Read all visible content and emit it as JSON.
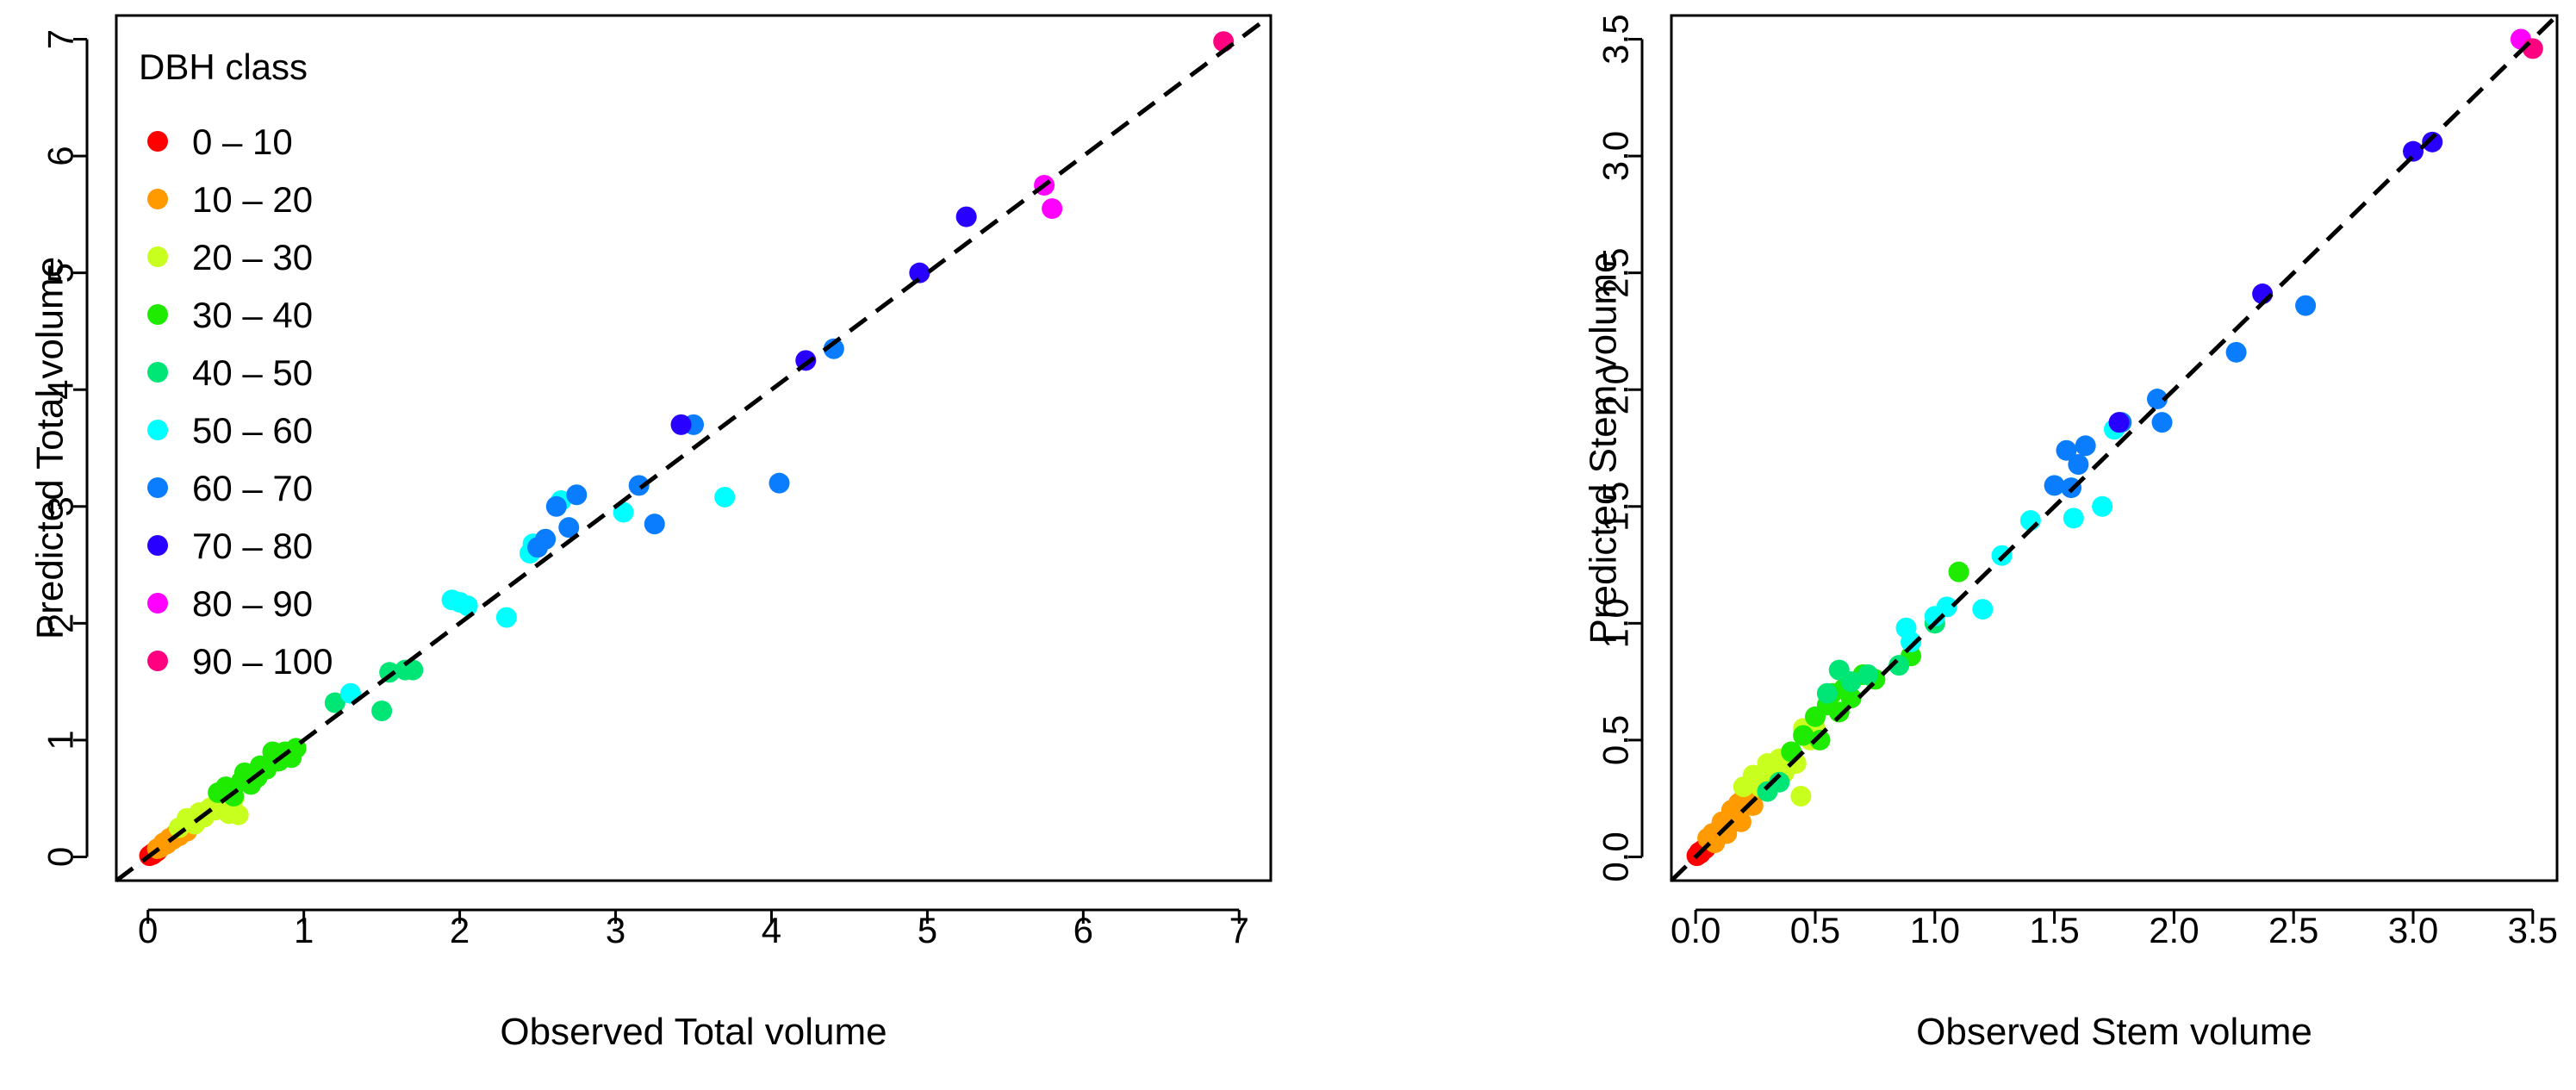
{
  "chart_data": [
    {
      "type": "scatter",
      "id": "total",
      "xlabel": "Observed Total volume",
      "ylabel": "Predicted Total volume",
      "xlim": [
        0,
        7
      ],
      "ylim": [
        0,
        7
      ],
      "xticks": [
        0,
        1,
        2,
        3,
        4,
        5,
        6,
        7
      ],
      "yticks": [
        0,
        1,
        2,
        3,
        4,
        5,
        6,
        7
      ],
      "xtick_labels": [
        "0",
        "1",
        "2",
        "3",
        "4",
        "5",
        "6",
        "7"
      ],
      "ytick_labels": [
        "0",
        "1",
        "2",
        "3",
        "4",
        "5",
        "6",
        "7"
      ],
      "reference_line": "y = x (dashed)",
      "legend": {
        "title": "DBH class",
        "placement": "top-left",
        "entries": [
          {
            "label": "0 – 10",
            "color": "#ff0000"
          },
          {
            "label": "10 – 20",
            "color": "#ff9a00"
          },
          {
            "label": "20 – 30",
            "color": "#c8ff1e"
          },
          {
            "label": "30 – 40",
            "color": "#1eeb00"
          },
          {
            "label": "40 – 50",
            "color": "#00e676"
          },
          {
            "label": "50 – 60",
            "color": "#00ffff"
          },
          {
            "label": "60 – 70",
            "color": "#0a7dff"
          },
          {
            "label": "70 – 80",
            "color": "#2800ff"
          },
          {
            "label": "80 – 90",
            "color": "#ff00ff"
          },
          {
            "label": "90 – 100",
            "color": "#ff0080"
          }
        ]
      },
      "series": [
        {
          "name": "0 – 10",
          "points": [
            [
              0.01,
              0.01
            ],
            [
              0.02,
              0.02
            ],
            [
              0.03,
              0.02
            ],
            [
              0.04,
              0.04
            ],
            [
              0.05,
              0.04
            ],
            [
              0.06,
              0.05
            ]
          ]
        },
        {
          "name": "10 – 20",
          "points": [
            [
              0.06,
              0.07
            ],
            [
              0.08,
              0.08
            ],
            [
              0.1,
              0.12
            ],
            [
              0.12,
              0.11
            ],
            [
              0.14,
              0.16
            ],
            [
              0.16,
              0.15
            ],
            [
              0.18,
              0.2
            ],
            [
              0.2,
              0.18
            ],
            [
              0.22,
              0.23
            ],
            [
              0.25,
              0.22
            ],
            [
              0.28,
              0.27
            ],
            [
              0.3,
              0.3
            ]
          ]
        },
        {
          "name": "20 – 30",
          "points": [
            [
              0.2,
              0.25
            ],
            [
              0.25,
              0.33
            ],
            [
              0.3,
              0.28
            ],
            [
              0.33,
              0.38
            ],
            [
              0.36,
              0.34
            ],
            [
              0.4,
              0.42
            ],
            [
              0.43,
              0.4
            ],
            [
              0.46,
              0.47
            ],
            [
              0.5,
              0.44
            ],
            [
              0.52,
              0.37
            ],
            [
              0.55,
              0.5
            ],
            [
              0.58,
              0.36
            ]
          ]
        },
        {
          "name": "30 – 40",
          "points": [
            [
              0.45,
              0.55
            ],
            [
              0.5,
              0.6
            ],
            [
              0.55,
              0.52
            ],
            [
              0.6,
              0.65
            ],
            [
              0.62,
              0.72
            ],
            [
              0.66,
              0.62
            ],
            [
              0.7,
              0.68
            ],
            [
              0.72,
              0.78
            ],
            [
              0.76,
              0.75
            ],
            [
              0.8,
              0.9
            ],
            [
              0.84,
              0.82
            ],
            [
              0.88,
              0.9
            ],
            [
              0.92,
              0.85
            ],
            [
              0.95,
              0.93
            ]
          ]
        },
        {
          "name": "40 – 50",
          "points": [
            [
              1.2,
              1.32
            ],
            [
              1.5,
              1.25
            ],
            [
              1.55,
              1.58
            ],
            [
              1.65,
              1.6
            ],
            [
              1.7,
              1.6
            ]
          ]
        },
        {
          "name": "50 – 60",
          "points": [
            [
              1.3,
              1.4
            ],
            [
              1.95,
              2.2
            ],
            [
              2.0,
              2.18
            ],
            [
              2.05,
              2.15
            ],
            [
              2.3,
              2.05
            ],
            [
              2.45,
              2.6
            ],
            [
              2.47,
              2.68
            ],
            [
              2.65,
              3.05
            ],
            [
              3.05,
              2.95
            ],
            [
              3.7,
              3.08
            ]
          ]
        },
        {
          "name": "60 – 70",
          "points": [
            [
              2.5,
              2.65
            ],
            [
              2.55,
              2.72
            ],
            [
              2.62,
              3.0
            ],
            [
              2.7,
              2.82
            ],
            [
              2.75,
              3.1
            ],
            [
              3.15,
              3.18
            ],
            [
              3.25,
              2.85
            ],
            [
              3.5,
              3.7
            ],
            [
              4.05,
              3.2
            ],
            [
              4.4,
              4.35
            ]
          ]
        },
        {
          "name": "70 – 80",
          "points": [
            [
              3.42,
              3.7
            ],
            [
              4.22,
              4.25
            ],
            [
              4.95,
              5.0
            ],
            [
              5.25,
              5.48
            ]
          ]
        },
        {
          "name": "80 – 90",
          "points": [
            [
              5.75,
              5.75
            ],
            [
              5.8,
              5.55
            ]
          ]
        },
        {
          "name": "90 – 100",
          "points": [
            [
              6.9,
              6.98
            ]
          ]
        }
      ]
    },
    {
      "type": "scatter",
      "id": "stem",
      "xlabel": "Observed Stem volume",
      "ylabel": "Predicted Stem volume",
      "xlim": [
        0,
        3.5
      ],
      "ylim": [
        0,
        3.5
      ],
      "xticks": [
        0,
        0.5,
        1,
        1.5,
        2,
        2.5,
        3,
        3.5
      ],
      "yticks": [
        0,
        0.5,
        1,
        1.5,
        2,
        2.5,
        3,
        3.5
      ],
      "xtick_labels": [
        "0.0",
        "0.5",
        "1.0",
        "1.5",
        "2.0",
        "2.5",
        "3.0",
        "3.5"
      ],
      "ytick_labels": [
        "0.0",
        "0.5",
        "1.0",
        "1.5",
        "2.0",
        "2.5",
        "3.0",
        "3.5"
      ],
      "reference_line": "y = x (dashed)",
      "series": [
        {
          "name": "0 – 10",
          "points": [
            [
              0.005,
              0.005
            ],
            [
              0.01,
              0.01
            ],
            [
              0.015,
              0.02
            ],
            [
              0.02,
              0.015
            ],
            [
              0.03,
              0.03
            ],
            [
              0.04,
              0.035
            ]
          ]
        },
        {
          "name": "10 – 20",
          "points": [
            [
              0.05,
              0.08
            ],
            [
              0.07,
              0.1
            ],
            [
              0.08,
              0.06
            ],
            [
              0.1,
              0.12
            ],
            [
              0.11,
              0.15
            ],
            [
              0.13,
              0.1
            ],
            [
              0.15,
              0.2
            ],
            [
              0.16,
              0.17
            ],
            [
              0.18,
              0.23
            ],
            [
              0.19,
              0.15
            ],
            [
              0.2,
              0.25
            ],
            [
              0.22,
              0.27
            ],
            [
              0.24,
              0.22
            ]
          ]
        },
        {
          "name": "20 – 30",
          "points": [
            [
              0.2,
              0.3
            ],
            [
              0.24,
              0.35
            ],
            [
              0.27,
              0.3
            ],
            [
              0.3,
              0.4
            ],
            [
              0.32,
              0.33
            ],
            [
              0.35,
              0.42
            ],
            [
              0.37,
              0.36
            ],
            [
              0.4,
              0.45
            ],
            [
              0.42,
              0.4
            ],
            [
              0.44,
              0.26
            ],
            [
              0.45,
              0.55
            ],
            [
              0.48,
              0.5
            ],
            [
              0.5,
              0.55
            ]
          ]
        },
        {
          "name": "30 – 40",
          "points": [
            [
              0.4,
              0.45
            ],
            [
              0.45,
              0.52
            ],
            [
              0.5,
              0.6
            ],
            [
              0.52,
              0.5
            ],
            [
              0.55,
              0.65
            ],
            [
              0.57,
              0.7
            ],
            [
              0.6,
              0.62
            ],
            [
              0.62,
              0.72
            ],
            [
              0.65,
              0.68
            ],
            [
              0.7,
              0.78
            ],
            [
              0.75,
              0.76
            ],
            [
              0.9,
              0.86
            ],
            [
              1.1,
              1.22
            ]
          ]
        },
        {
          "name": "40 – 50",
          "points": [
            [
              0.3,
              0.28
            ],
            [
              0.35,
              0.32
            ],
            [
              0.55,
              0.7
            ],
            [
              0.6,
              0.8
            ],
            [
              0.65,
              0.75
            ],
            [
              0.72,
              0.78
            ],
            [
              0.85,
              0.82
            ],
            [
              1.0,
              1.0
            ]
          ]
        },
        {
          "name": "50 – 60",
          "points": [
            [
              0.88,
              0.98
            ],
            [
              0.9,
              0.92
            ],
            [
              1.0,
              1.03
            ],
            [
              1.05,
              1.07
            ],
            [
              1.2,
              1.06
            ],
            [
              1.28,
              1.29
            ],
            [
              1.4,
              1.44
            ],
            [
              1.58,
              1.45
            ],
            [
              1.7,
              1.5
            ],
            [
              1.75,
              1.83
            ]
          ]
        },
        {
          "name": "60 – 70",
          "points": [
            [
              1.5,
              1.59
            ],
            [
              1.55,
              1.74
            ],
            [
              1.57,
              1.58
            ],
            [
              1.6,
              1.68
            ],
            [
              1.63,
              1.76
            ],
            [
              1.78,
              1.86
            ],
            [
              1.93,
              1.96
            ],
            [
              1.95,
              1.86
            ],
            [
              2.26,
              2.16
            ],
            [
              2.55,
              2.36
            ]
          ]
        },
        {
          "name": "70 – 80",
          "points": [
            [
              1.77,
              1.86
            ],
            [
              2.37,
              2.41
            ],
            [
              3.0,
              3.02
            ],
            [
              3.08,
              3.06
            ]
          ]
        },
        {
          "name": "80 – 90",
          "points": [
            [
              3.45,
              3.5
            ]
          ]
        },
        {
          "name": "90 – 100",
          "points": [
            [
              3.5,
              3.46
            ]
          ]
        }
      ]
    }
  ]
}
